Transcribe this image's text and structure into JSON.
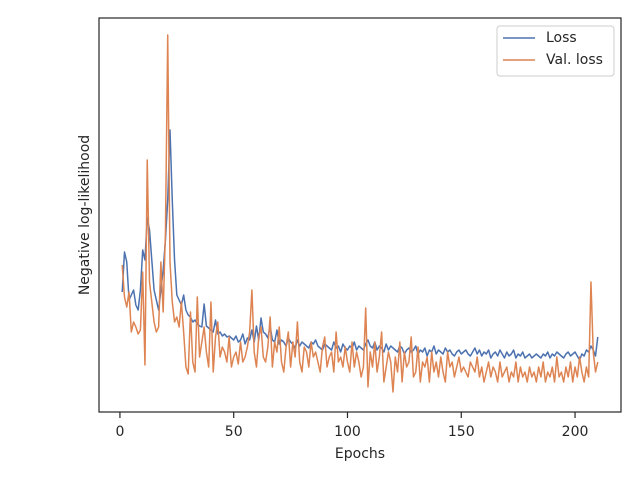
{
  "chart_data": {
    "type": "line",
    "xlabel": "Epochs",
    "ylabel": "Negative log-likelihood",
    "xlim": [
      -9.2,
      220.2
    ],
    "xticks": [
      0,
      50,
      100,
      150,
      200
    ],
    "ylim": [
      0,
      394
    ],
    "legend": "upper right",
    "x": [
      1,
      2,
      3,
      4,
      5,
      6,
      7,
      8,
      9,
      10,
      11,
      12,
      13,
      14,
      15,
      16,
      17,
      18,
      19,
      20,
      21,
      22,
      23,
      24,
      25,
      26,
      27,
      28,
      29,
      30,
      31,
      32,
      33,
      34,
      35,
      36,
      37,
      38,
      39,
      40,
      41,
      42,
      43,
      44,
      45,
      46,
      47,
      48,
      49,
      50,
      51,
      52,
      53,
      54,
      55,
      56,
      57,
      58,
      59,
      60,
      61,
      62,
      63,
      64,
      65,
      66,
      67,
      68,
      69,
      70,
      71,
      72,
      73,
      74,
      75,
      76,
      77,
      78,
      79,
      80,
      81,
      82,
      83,
      84,
      85,
      86,
      87,
      88,
      89,
      90,
      91,
      92,
      93,
      94,
      95,
      96,
      97,
      98,
      99,
      100,
      101,
      102,
      103,
      104,
      105,
      106,
      107,
      108,
      109,
      110,
      111,
      112,
      113,
      114,
      115,
      116,
      117,
      118,
      119,
      120,
      121,
      122,
      123,
      124,
      125,
      126,
      127,
      128,
      129,
      130,
      131,
      132,
      133,
      134,
      135,
      136,
      137,
      138,
      139,
      140,
      141,
      142,
      143,
      144,
      145,
      146,
      147,
      148,
      149,
      150,
      151,
      152,
      153,
      154,
      155,
      156,
      157,
      158,
      159,
      160,
      161,
      162,
      163,
      164,
      165,
      166,
      167,
      168,
      169,
      170,
      171,
      172,
      173,
      174,
      175,
      176,
      177,
      178,
      179,
      180,
      181,
      182,
      183,
      184,
      185,
      186,
      187,
      188,
      189,
      190,
      191,
      192,
      193,
      194,
      195,
      196,
      197,
      198,
      199,
      200,
      201,
      202,
      203,
      204,
      205,
      206,
      207,
      208,
      209,
      210
    ],
    "series": [
      {
        "name": "Loss",
        "color": "#4c72b0",
        "values": [
          120,
          160,
          150,
          112,
          117,
          122,
          107,
          102,
          122,
          162,
          152,
          194,
          182,
          152,
          122,
          112,
          102,
          122,
          142,
          172,
          212,
          282,
          212,
          152,
          117,
          112,
          107,
          117,
          102,
          97,
          95,
          90,
          92,
          88,
          86,
          85,
          108,
          86,
          84,
          82,
          80,
          92,
          78,
          80,
          76,
          78,
          75,
          76,
          74,
          72,
          76,
          70,
          72,
          78,
          68,
          74,
          72,
          82,
          70,
          86,
          72,
          94,
          80,
          78,
          74,
          86,
          72,
          70,
          82,
          68,
          72,
          70,
          66,
          74,
          70,
          68,
          64,
          72,
          66,
          70,
          68,
          66,
          64,
          70,
          68,
          72,
          66,
          64,
          62,
          68,
          66,
          64,
          62,
          70,
          64,
          66,
          60,
          68,
          64,
          62,
          66,
          64,
          70,
          62,
          66,
          64,
          62,
          68,
          72,
          66,
          64,
          70,
          62,
          66,
          64,
          60,
          68,
          62,
          66,
          64,
          62,
          60,
          66,
          64,
          58,
          62,
          64,
          60,
          62,
          66,
          58,
          62,
          60,
          64,
          56,
          62,
          60,
          66,
          58,
          62,
          60,
          58,
          64,
          60,
          62,
          58,
          56,
          60,
          62,
          58,
          60,
          62,
          58,
          56,
          60,
          64,
          58,
          62,
          56,
          60,
          58,
          62,
          54,
          58,
          60,
          56,
          62,
          58,
          54,
          60,
          56,
          58,
          62,
          54,
          58,
          56,
          60,
          54,
          56,
          58,
          54,
          56,
          58,
          56,
          54,
          58,
          56,
          60,
          54,
          58,
          56,
          60,
          58,
          56,
          54,
          58,
          60,
          56,
          58,
          60,
          56,
          52,
          58,
          56,
          62,
          60,
          66,
          62,
          56,
          75
        ]
      },
      {
        "name": "Val. loss",
        "color": "#dd8452",
        "values": [
          147,
          115,
          105,
          120,
          80,
          90,
          85,
          78,
          82,
          140,
          47,
          252,
          130,
          110,
          90,
          80,
          85,
          150,
          100,
          180,
          377,
          150,
          110,
          90,
          95,
          85,
          110,
          80,
          45,
          38,
          100,
          50,
          40,
          115,
          55,
          70,
          85,
          60,
          45,
          110,
          40,
          75,
          90,
          55,
          65,
          60,
          50,
          75,
          45,
          55,
          60,
          48,
          70,
          50,
          55,
          65,
          80,
          122,
          60,
          45,
          75,
          85,
          55,
          50,
          65,
          95,
          45,
          70,
          60,
          85,
          50,
          40,
          65,
          80,
          45,
          70,
          55,
          90,
          50,
          40,
          65,
          60,
          45,
          70,
          55,
          60,
          50,
          40,
          65,
          75,
          45,
          55,
          60,
          40,
          80,
          50,
          55,
          45,
          65,
          50,
          40,
          70,
          45,
          60,
          50,
          35,
          45,
          104,
          25,
          60,
          45,
          70,
          40,
          55,
          80,
          30,
          45,
          60,
          50,
          20,
          55,
          40,
          70,
          30,
          60,
          45,
          50,
          75,
          35,
          40,
          65,
          30,
          50,
          45,
          55,
          30,
          60,
          40,
          50,
          35,
          55,
          40,
          30,
          60,
          45,
          50,
          35,
          45,
          55,
          40,
          45,
          40,
          35,
          50,
          45,
          40,
          55,
          35,
          45,
          30,
          40,
          50,
          35,
          45,
          40,
          30,
          50,
          35,
          40,
          45,
          30,
          40,
          35,
          50,
          30,
          45,
          35,
          40,
          30,
          45,
          35,
          40,
          30,
          45,
          35,
          50,
          30,
          40,
          35,
          45,
          30,
          55,
          35,
          40,
          30,
          45,
          35,
          50,
          30,
          45,
          35,
          55,
          40,
          30,
          45,
          35,
          130,
          60,
          40,
          50
        ]
      }
    ]
  }
}
